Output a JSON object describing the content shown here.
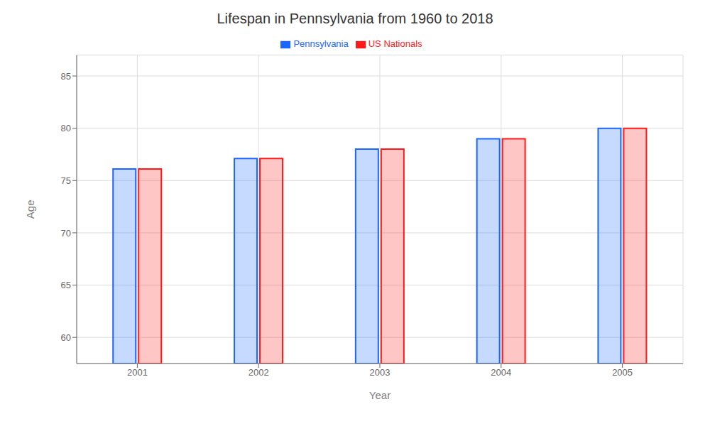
{
  "chart_data": {
    "type": "bar",
    "title": "Lifespan in Pennsylvania from 1960 to 2018",
    "x_label": "Year",
    "y_label": "Age",
    "categories": [
      2001,
      2002,
      2003,
      2004,
      2005
    ],
    "series": [
      {
        "name": "Pennsylvania",
        "color": "#1a66ff",
        "values": [
          76.1,
          77.1,
          78.0,
          79.0,
          80.0
        ]
      },
      {
        "name": "US Nationals",
        "color": "#ff1a1a",
        "values": [
          76.1,
          77.1,
          78.0,
          79.0,
          80.0
        ]
      }
    ],
    "ylim": [
      57.5,
      87
    ],
    "yticks": [
      60,
      65,
      70,
      75,
      80,
      85
    ],
    "grid": true,
    "legend": "top"
  }
}
